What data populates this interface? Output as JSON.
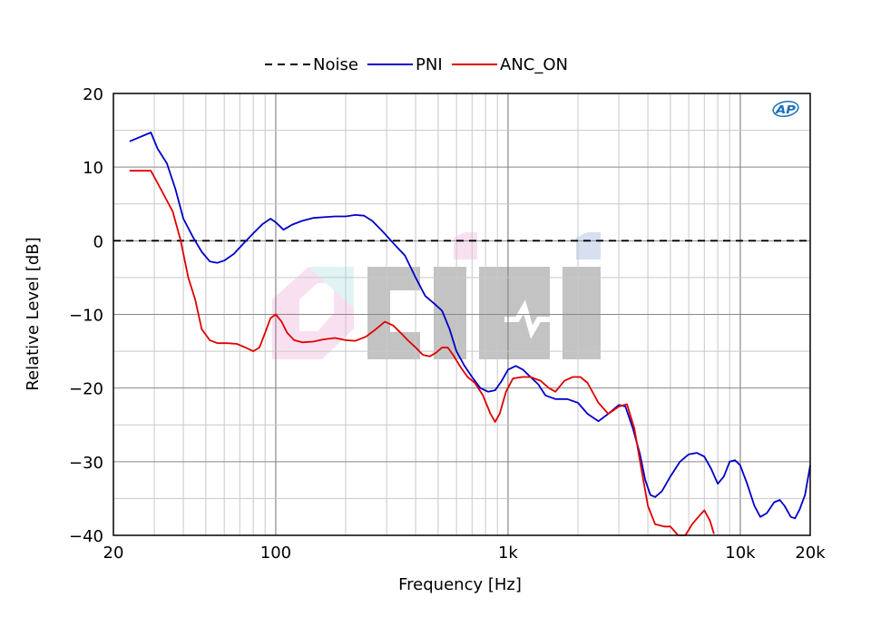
{
  "chart_data": {
    "type": "line",
    "title": "",
    "xlabel": "Frequency [Hz]",
    "ylabel": "Relative Level [dB]",
    "xscale": "log",
    "xlim": [
      20,
      20000
    ],
    "ylim": [
      -40,
      20
    ],
    "x_ticks": [
      20,
      100,
      1000,
      10000,
      20000
    ],
    "x_tick_labels": [
      "20",
      "100",
      "1k",
      "10k",
      "20k"
    ],
    "y_ticks": [
      20,
      10,
      0,
      -10,
      -20,
      -30,
      -40
    ],
    "y_tick_labels": [
      "20",
      "10",
      "0",
      "−10",
      "−20",
      "−30",
      "−40"
    ],
    "grid": true,
    "legend_position": "top-center",
    "logo_text": "AP",
    "series": [
      {
        "name": "Noise",
        "color": "#000000",
        "style": "dashed",
        "points": [
          [
            20,
            0
          ],
          [
            20000,
            0
          ]
        ]
      },
      {
        "name": "PNI",
        "color": "#0000c8",
        "style": "solid",
        "points": [
          [
            23.5,
            13.5
          ],
          [
            29,
            14.7
          ],
          [
            31,
            12.5
          ],
          [
            34,
            10.5
          ],
          [
            37,
            7
          ],
          [
            40,
            3
          ],
          [
            44,
            0.5
          ],
          [
            48,
            -1.5
          ],
          [
            52,
            -2.8
          ],
          [
            56,
            -3.0
          ],
          [
            60,
            -2.7
          ],
          [
            66,
            -1.8
          ],
          [
            72,
            -0.5
          ],
          [
            80,
            1
          ],
          [
            88,
            2.3
          ],
          [
            95,
            3.0
          ],
          [
            100,
            2.5
          ],
          [
            108,
            1.5
          ],
          [
            118,
            2.2
          ],
          [
            130,
            2.7
          ],
          [
            145,
            3.1
          ],
          [
            160,
            3.2
          ],
          [
            180,
            3.3
          ],
          [
            200,
            3.3
          ],
          [
            220,
            3.5
          ],
          [
            240,
            3.4
          ],
          [
            260,
            2.7
          ],
          [
            290,
            1.2
          ],
          [
            320,
            -0.3
          ],
          [
            360,
            -2
          ],
          [
            400,
            -5
          ],
          [
            440,
            -7.5
          ],
          [
            480,
            -8.5
          ],
          [
            520,
            -9.5
          ],
          [
            560,
            -12
          ],
          [
            600,
            -15
          ],
          [
            650,
            -17
          ],
          [
            700,
            -18.5
          ],
          [
            760,
            -20
          ],
          [
            820,
            -20.5
          ],
          [
            880,
            -20.3
          ],
          [
            940,
            -19
          ],
          [
            1000,
            -17.5
          ],
          [
            1080,
            -17
          ],
          [
            1160,
            -17.5
          ],
          [
            1250,
            -18.5
          ],
          [
            1350,
            -19.5
          ],
          [
            1450,
            -21
          ],
          [
            1600,
            -21.5
          ],
          [
            1800,
            -21.5
          ],
          [
            2000,
            -22
          ],
          [
            2200,
            -23.5
          ],
          [
            2450,
            -24.5
          ],
          [
            2700,
            -23.5
          ],
          [
            3000,
            -22.3
          ],
          [
            3200,
            -22.5
          ],
          [
            3450,
            -25.5
          ],
          [
            3700,
            -29
          ],
          [
            3900,
            -32.5
          ],
          [
            4100,
            -34.5
          ],
          [
            4300,
            -34.8
          ],
          [
            4600,
            -34
          ],
          [
            5000,
            -32
          ],
          [
            5500,
            -30
          ],
          [
            6000,
            -29
          ],
          [
            6500,
            -28.8
          ],
          [
            7000,
            -29.3
          ],
          [
            7500,
            -31
          ],
          [
            8000,
            -33
          ],
          [
            8500,
            -32
          ],
          [
            9000,
            -30
          ],
          [
            9500,
            -29.8
          ],
          [
            10000,
            -30.5
          ],
          [
            10700,
            -33
          ],
          [
            11500,
            -36
          ],
          [
            12200,
            -37.5
          ],
          [
            13000,
            -37
          ],
          [
            14000,
            -35.5
          ],
          [
            14800,
            -35.2
          ],
          [
            15500,
            -36
          ],
          [
            16500,
            -37.5
          ],
          [
            17200,
            -37.7
          ],
          [
            18000,
            -36.5
          ],
          [
            19000,
            -34.5
          ],
          [
            20000,
            -30.5
          ]
        ]
      },
      {
        "name": "ANC_ON",
        "color": "#e00000",
        "style": "solid",
        "points": [
          [
            23.5,
            9.5
          ],
          [
            29,
            9.5
          ],
          [
            32,
            7
          ],
          [
            36,
            4
          ],
          [
            39,
            0
          ],
          [
            42,
            -5
          ],
          [
            45,
            -8
          ],
          [
            48,
            -12
          ],
          [
            52,
            -13.5
          ],
          [
            56,
            -13.9
          ],
          [
            62,
            -13.9
          ],
          [
            68,
            -14
          ],
          [
            74,
            -14.5
          ],
          [
            80,
            -15
          ],
          [
            85,
            -14.5
          ],
          [
            90,
            -12.5
          ],
          [
            95,
            -10.5
          ],
          [
            100,
            -10
          ],
          [
            106,
            -11
          ],
          [
            112,
            -12.5
          ],
          [
            120,
            -13.5
          ],
          [
            130,
            -13.8
          ],
          [
            145,
            -13.7
          ],
          [
            160,
            -13.4
          ],
          [
            180,
            -13.2
          ],
          [
            200,
            -13.5
          ],
          [
            220,
            -13.6
          ],
          [
            245,
            -13
          ],
          [
            270,
            -12
          ],
          [
            295,
            -11
          ],
          [
            320,
            -11.5
          ],
          [
            345,
            -12.5
          ],
          [
            370,
            -13.5
          ],
          [
            400,
            -14.5
          ],
          [
            430,
            -15.5
          ],
          [
            460,
            -15.7
          ],
          [
            490,
            -15.2
          ],
          [
            520,
            -14.5
          ],
          [
            550,
            -14.5
          ],
          [
            580,
            -15.5
          ],
          [
            620,
            -17
          ],
          [
            670,
            -18.5
          ],
          [
            720,
            -19.3
          ],
          [
            780,
            -21
          ],
          [
            840,
            -23.5
          ],
          [
            880,
            -24.6
          ],
          [
            920,
            -23.5
          ],
          [
            980,
            -20.5
          ],
          [
            1050,
            -18.7
          ],
          [
            1150,
            -18.5
          ],
          [
            1250,
            -18.5
          ],
          [
            1380,
            -19
          ],
          [
            1500,
            -20
          ],
          [
            1600,
            -20.5
          ],
          [
            1750,
            -19
          ],
          [
            1900,
            -18.5
          ],
          [
            2050,
            -18.5
          ],
          [
            2200,
            -19.3
          ],
          [
            2450,
            -22
          ],
          [
            2700,
            -23.5
          ],
          [
            3000,
            -22.5
          ],
          [
            3250,
            -22.2
          ],
          [
            3500,
            -25.5
          ],
          [
            3750,
            -31
          ],
          [
            4000,
            -36
          ],
          [
            4300,
            -38.5
          ],
          [
            4700,
            -38.8
          ],
          [
            5000,
            -38.8
          ],
          [
            5400,
            -40
          ],
          [
            5800,
            -40
          ],
          [
            6200,
            -38.5
          ],
          [
            6600,
            -37.5
          ],
          [
            7000,
            -36.6
          ],
          [
            7400,
            -38
          ],
          [
            7700,
            -39.8
          ]
        ]
      }
    ]
  }
}
